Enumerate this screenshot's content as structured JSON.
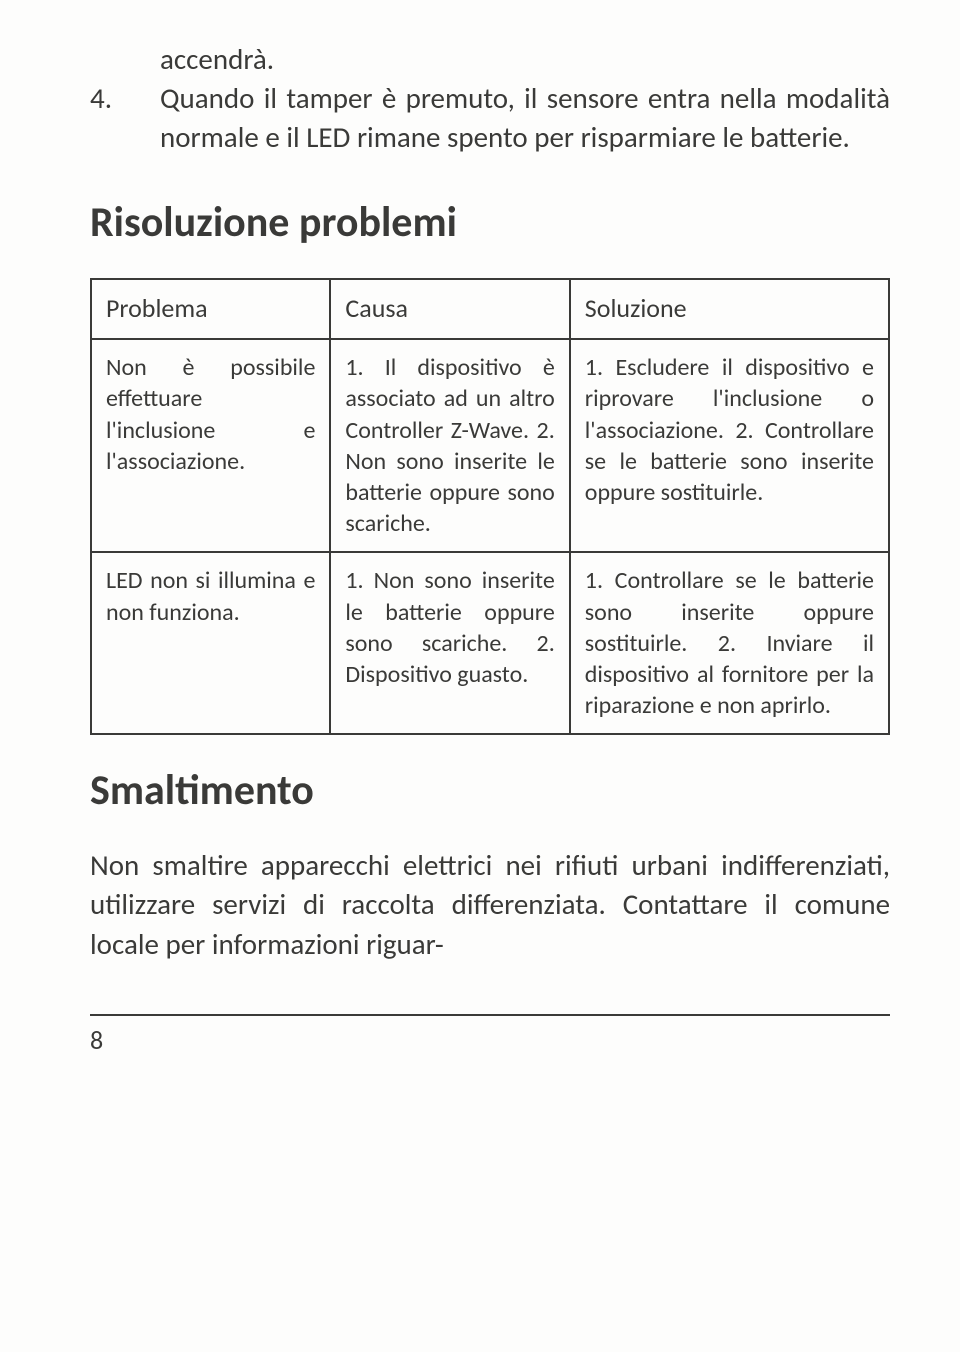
{
  "intro": {
    "line1": "accendrà.",
    "item4_num": "4.",
    "item4_text": "Quando il tamper è premuto, il sensore entra nella modalità normale e il LED rimane spento per risparmiare le batterie."
  },
  "sections": {
    "troubleshooting_title": "Risoluzione problemi",
    "disposal_title": "Smaltimento"
  },
  "table": {
    "headers": {
      "problema": "Problema",
      "causa": "Causa",
      "soluzione": "Soluzione"
    },
    "rows": [
      {
        "problema": "Non è possibile effettuare l'inclusione e l'associazione.",
        "causa": "1. Il dispositivo è associato ad un altro Controller Z-Wave. 2. Non sono inserite le batterie oppure sono scariche.",
        "soluzione": "1. Escludere il dispositivo e riprovare l'inclusione o l'associazione. 2. Controllare se le batterie sono inserite oppure sostituirle."
      },
      {
        "problema": "LED non si illumina e non funziona.",
        "causa": "1. Non sono inserite le batterie oppure sono scariche. 2. Dispositivo guasto.",
        "soluzione": "1. Controllare se le batterie sono inserite oppure sostituirle. 2. Inviare il dispositivo al fornitore per la riparazione e non aprirlo."
      }
    ]
  },
  "disposal": {
    "text": "Non smaltire apparecchi elettrici nei rifiuti urbani indifferenziati, utilizzare servizi di raccolta differenziata. Contattare il comune locale per informazioni riguar-"
  },
  "footer": {
    "page_number": "8"
  }
}
